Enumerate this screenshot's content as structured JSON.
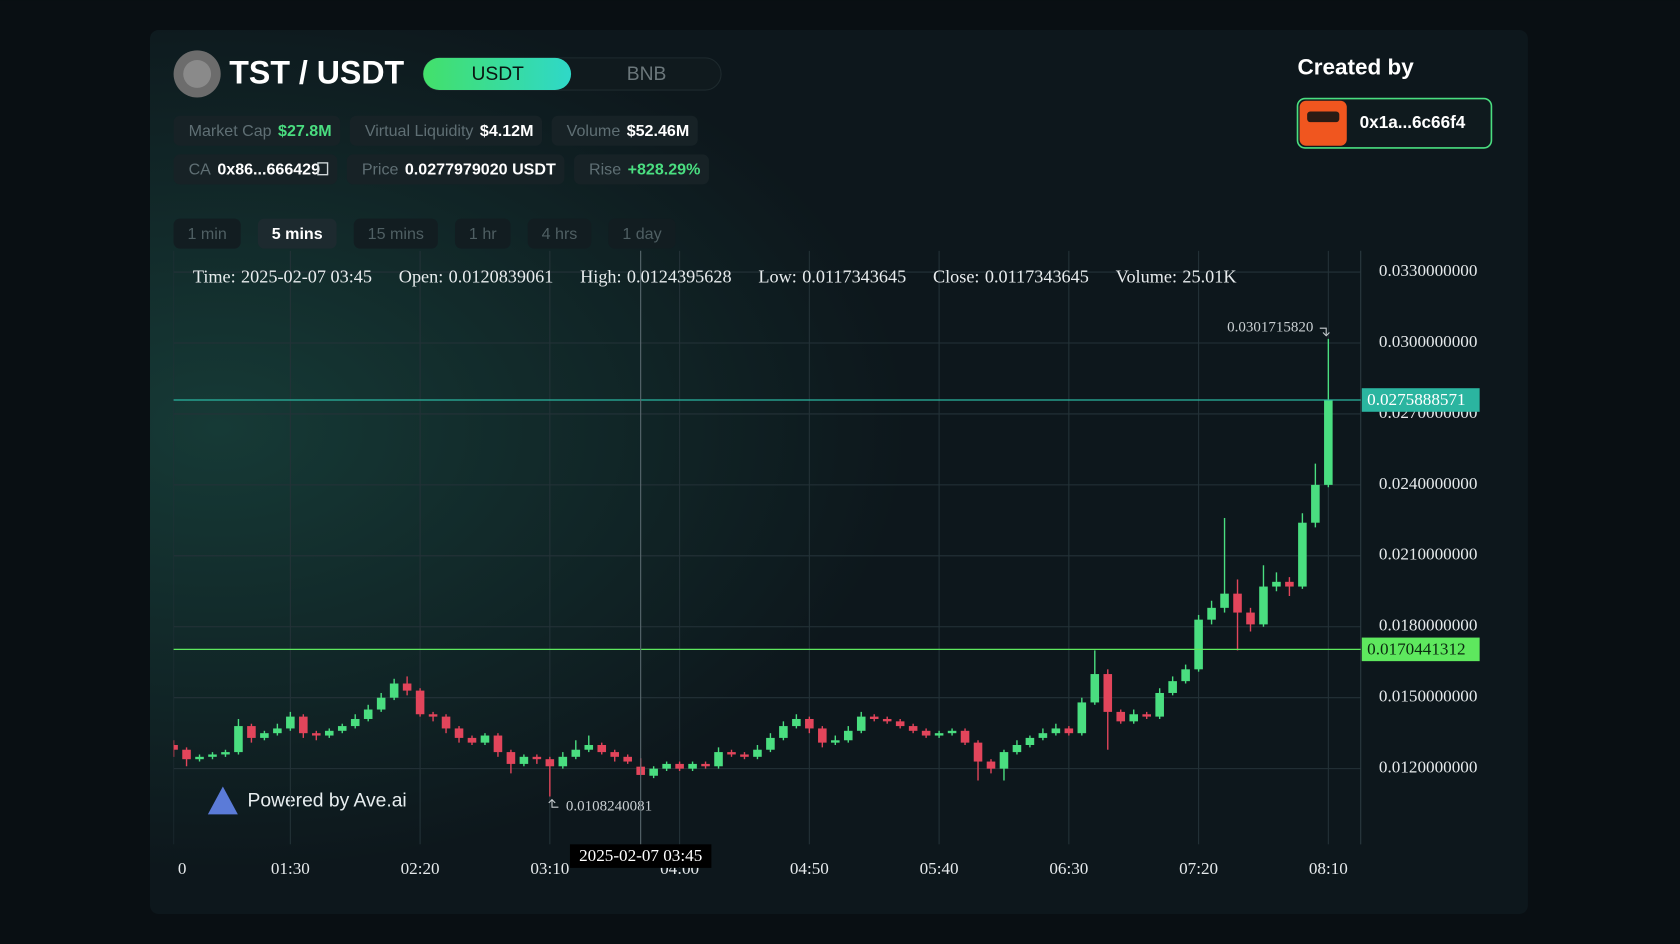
{
  "header": {
    "pair": "TST / USDT",
    "currencies": [
      {
        "label": "USDT",
        "active": true
      },
      {
        "label": "BNB"
      }
    ],
    "stats": [
      [
        {
          "label": "Market Cap",
          "value": "$27.8M",
          "color": "#4ade80"
        },
        {
          "label": "Virtual Liquidity",
          "value": "$4.12M",
          "color": "#ffffff"
        },
        {
          "label": "Volume",
          "value": "$52.46M",
          "color": "#ffffff"
        }
      ],
      [
        {
          "label": "CA",
          "value": "0x86...666429",
          "color": "#ffffff",
          "copy": true
        },
        {
          "label": "Price",
          "value": "0.0277979020 USDT",
          "color": "#ffffff"
        },
        {
          "label": "Rise",
          "value": "+828.29%",
          "color": "#4ade80"
        }
      ]
    ],
    "timeframes": [
      {
        "label": "1 min"
      },
      {
        "label": "5 mins",
        "active": true
      },
      {
        "label": "15 mins"
      },
      {
        "label": "1 hr"
      },
      {
        "label": "4 hrs"
      },
      {
        "label": "1 day"
      }
    ]
  },
  "created_by": {
    "title": "Created by",
    "address": "0x1a...6c66f4"
  },
  "watermark": "Powered by Ave.ai",
  "chart_data": {
    "type": "candlestick",
    "categories": [
      "0",
      null,
      null,
      null,
      null,
      null,
      null,
      null,
      null,
      "01:30",
      null,
      null,
      null,
      null,
      null,
      null,
      null,
      null,
      null,
      "02:20",
      null,
      null,
      null,
      null,
      null,
      null,
      null,
      null,
      null,
      "03:10",
      null,
      null,
      null,
      null,
      null,
      null,
      null,
      null,
      null,
      "04:00",
      null,
      null,
      null,
      null,
      null,
      null,
      null,
      null,
      null,
      "04:50",
      null,
      null,
      null,
      null,
      null,
      null,
      null,
      null,
      null,
      "05:40",
      null,
      null,
      null,
      null,
      null,
      null,
      null,
      null,
      null,
      "06:30",
      null,
      null,
      null,
      null,
      null,
      null,
      null,
      null,
      null,
      "07:20",
      null,
      null,
      null,
      null,
      null,
      null,
      null,
      null,
      null,
      "08:10"
    ],
    "open": [
      0.013,
      0.0128,
      0.0124,
      0.0125,
      0.0126,
      0.0127,
      0.0138,
      0.0133,
      0.0135,
      0.0137,
      0.0142,
      0.0135,
      0.0134,
      0.0136,
      0.0138,
      0.0141,
      0.0145,
      0.015,
      0.0156,
      0.0153,
      0.0143,
      0.0142,
      0.0137,
      0.0133,
      0.0131,
      0.0134,
      0.0127,
      0.0122,
      0.0125,
      0.0124,
      0.0121,
      0.0125,
      0.0128,
      0.013,
      0.0127,
      0.0125,
      0.0120839061,
      0.0117,
      0.012,
      0.0122,
      0.012,
      0.0122,
      0.0121,
      0.0127,
      0.0126,
      0.0125,
      0.0128,
      0.0133,
      0.0138,
      0.0141,
      0.0137,
      0.0131,
      0.0132,
      0.0136,
      0.0142,
      0.0141,
      0.014,
      0.0138,
      0.0136,
      0.0134,
      0.0135,
      0.0136,
      0.0131,
      0.0123,
      0.012,
      0.0127,
      0.013,
      0.0133,
      0.0135,
      0.0137,
      0.0135,
      0.0148,
      0.016,
      0.0144,
      0.014,
      0.0143,
      0.0142,
      0.0152,
      0.0157,
      0.0162,
      0.0183,
      0.0188,
      0.0194,
      0.0186,
      0.0181,
      0.0197,
      0.0199,
      0.0197,
      0.0224,
      0.024
    ],
    "high": [
      0.0132,
      0.0129,
      0.0126,
      0.0127,
      0.0128,
      0.0141,
      0.0139,
      0.0136,
      0.0139,
      0.0144,
      0.0143,
      0.0136,
      0.0137,
      0.0139,
      0.0143,
      0.0147,
      0.0152,
      0.0158,
      0.0159,
      0.0154,
      0.0144,
      0.0143,
      0.0138,
      0.0134,
      0.0135,
      0.0135,
      0.0128,
      0.0126,
      0.0126,
      0.0125,
      0.0127,
      0.0132,
      0.0134,
      0.0131,
      0.0128,
      0.0126,
      0.0124395628,
      0.0121,
      0.0123,
      0.0123,
      0.0123,
      0.0123,
      0.0129,
      0.0128,
      0.0127,
      0.013,
      0.0135,
      0.014,
      0.0143,
      0.0142,
      0.0138,
      0.0134,
      0.0138,
      0.0144,
      0.0143,
      0.0142,
      0.0141,
      0.0139,
      0.0137,
      0.0136,
      0.0137,
      0.0137,
      0.0132,
      0.0124,
      0.0128,
      0.0132,
      0.0134,
      0.0137,
      0.0139,
      0.0138,
      0.015,
      0.017,
      0.0162,
      0.0145,
      0.0145,
      0.0144,
      0.0154,
      0.0159,
      0.0164,
      0.0185,
      0.0191,
      0.0226,
      0.02,
      0.0188,
      0.0206,
      0.0203,
      0.0201,
      0.0228,
      0.0249,
      0.030171582
    ],
    "low": [
      0.0125,
      0.0121,
      0.0123,
      0.0124,
      0.0125,
      0.0126,
      0.0131,
      0.0132,
      0.0134,
      0.0136,
      0.0133,
      0.0132,
      0.0133,
      0.0135,
      0.0137,
      0.014,
      0.0144,
      0.0149,
      0.0151,
      0.0142,
      0.014,
      0.0135,
      0.0131,
      0.013,
      0.013,
      0.0125,
      0.0118,
      0.0121,
      0.0122,
      0.0108240081,
      0.012,
      0.0124,
      0.0127,
      0.0126,
      0.0123,
      0.0122,
      0.0117343645,
      0.0116,
      0.0119,
      0.0119,
      0.0119,
      0.012,
      0.012,
      0.0125,
      0.0124,
      0.0124,
      0.0127,
      0.0132,
      0.0137,
      0.0135,
      0.0129,
      0.013,
      0.0131,
      0.0135,
      0.014,
      0.0139,
      0.0137,
      0.0135,
      0.0133,
      0.0133,
      0.0134,
      0.013,
      0.0115,
      0.0118,
      0.0115,
      0.0126,
      0.0129,
      0.0132,
      0.0134,
      0.0134,
      0.0134,
      0.0147,
      0.0128,
      0.0139,
      0.0139,
      0.0141,
      0.0141,
      0.0151,
      0.0156,
      0.0161,
      0.0181,
      0.0186,
      0.017,
      0.0178,
      0.018,
      0.0195,
      0.0193,
      0.0196,
      0.0222,
      0.0239
    ],
    "close": [
      0.0128,
      0.0124,
      0.0125,
      0.0126,
      0.0127,
      0.0138,
      0.0133,
      0.0135,
      0.0137,
      0.0142,
      0.0135,
      0.0134,
      0.0136,
      0.0138,
      0.0141,
      0.0145,
      0.015,
      0.0156,
      0.0153,
      0.0143,
      0.0142,
      0.0137,
      0.0133,
      0.0131,
      0.0134,
      0.0127,
      0.0122,
      0.0125,
      0.0124,
      0.0121,
      0.0125,
      0.0128,
      0.013,
      0.0127,
      0.0125,
      0.0123,
      0.0117343645,
      0.012,
      0.0122,
      0.012,
      0.0122,
      0.0121,
      0.0127,
      0.0126,
      0.0125,
      0.0128,
      0.0133,
      0.0138,
      0.0141,
      0.0137,
      0.0131,
      0.0132,
      0.0136,
      0.0142,
      0.0141,
      0.014,
      0.0138,
      0.0136,
      0.0134,
      0.0135,
      0.0136,
      0.0131,
      0.0123,
      0.012,
      0.0127,
      0.013,
      0.0133,
      0.0135,
      0.0137,
      0.0135,
      0.0148,
      0.016,
      0.0144,
      0.014,
      0.0143,
      0.0142,
      0.0152,
      0.0157,
      0.0162,
      0.0183,
      0.0188,
      0.0194,
      0.0186,
      0.0181,
      0.0197,
      0.0199,
      0.0197,
      0.0224,
      0.024,
      0.0275888571
    ],
    "ylim": [
      0.0088,
      0.0339
    ],
    "yticks": [
      {
        "value": 0.012,
        "label": "0.0120000000"
      },
      {
        "value": 0.015,
        "label": "0.0150000000"
      },
      {
        "value": 0.018,
        "label": "0.0180000000"
      },
      {
        "value": 0.021,
        "label": "0.0210000000"
      },
      {
        "value": 0.024,
        "label": "0.0240000000"
      },
      {
        "value": 0.027,
        "label": "0.0270000000"
      },
      {
        "value": 0.03,
        "label": "0.0300000000"
      },
      {
        "value": 0.033,
        "label": "0.0330000000"
      }
    ],
    "grid": true,
    "up_color": "#4ade80",
    "down_color": "#e2455b",
    "max_label": "0.0301715820",
    "min_label": "0.0108240081",
    "price_lines": [
      {
        "value": 0.0275888571,
        "label": "0.0275888571",
        "color": "#2bb5a0"
      },
      {
        "value": 0.0170441312,
        "label": "0.0170441312",
        "color": "#5ee85e"
      }
    ],
    "tooltip": [
      {
        "label": "Time:",
        "value": "2025-02-07 03:45"
      },
      {
        "label": "Open:",
        "value": "0.0120839061"
      },
      {
        "label": "High:",
        "value": "0.0124395628"
      },
      {
        "label": "Low:",
        "value": "0.0117343645"
      },
      {
        "label": "Close:",
        "value": "0.0117343645"
      },
      {
        "label": "Volume:",
        "value": "25.01K"
      }
    ],
    "crosshair": {
      "index": 36,
      "label": "2025-02-07 03:45"
    }
  }
}
